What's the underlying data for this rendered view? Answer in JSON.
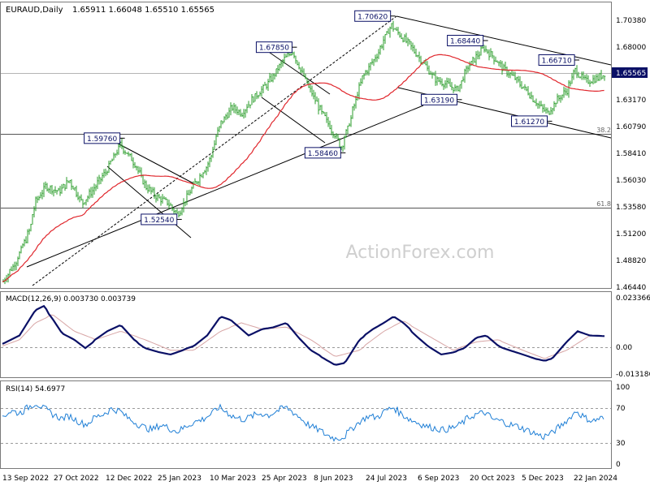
{
  "header": {
    "symbol": "EURAUD,Daily",
    "ohlc": "1.65911 1.66048 1.65510 1.65565",
    "watermark": "ActionForex.com"
  },
  "colors": {
    "candle": "#2b9d2b",
    "ma": "#e0262c",
    "macd": "#0a1066",
    "signal": "#d7a5a5",
    "rsi": "#1f7fd6",
    "guide": "#6b6b6b",
    "price_tag_bg": "#0a1066"
  },
  "chart_data": [
    {
      "type": "candlestick",
      "title": "EURAUD,Daily",
      "last_price": "1.65565",
      "y_ticks": [
        "1.70380",
        "1.68000",
        "1.65565",
        "1.63170",
        "1.60790",
        "1.58410",
        "1.56030",
        "1.53580",
        "1.51200",
        "1.48820",
        "1.46440"
      ],
      "x_ticks": [
        "13 Sep 2022",
        "27 Oct 2022",
        "12 Dec 2022",
        "25 Jan 2023",
        "10 Mar 2023",
        "25 Apr 2023",
        "8 Jun 2023",
        "24 Jul 2023",
        "6 Sep 2023",
        "20 Oct 2023",
        "5 Dec 2023",
        "22 Jan 2024"
      ],
      "ylim": [
        1.4644,
        1.7183
      ],
      "overlay": "moving average (red)",
      "fib_levels": [
        {
          "label": "38.2",
          "value": 1.6012
        },
        {
          "label": "61.8",
          "value": 1.5385
        }
      ],
      "annotations": [
        {
          "label": "1.70620",
          "date": "2023-08-01",
          "value": 1.7062
        },
        {
          "label": "1.67850",
          "date": "2023-05-10",
          "value": 1.6785
        },
        {
          "label": "1.59760",
          "date": "2022-12-16",
          "value": 1.5976
        },
        {
          "label": "1.58460",
          "date": "2023-06-20",
          "value": 1.5846
        },
        {
          "label": "1.52540",
          "date": "2023-02-02",
          "value": 1.5254
        },
        {
          "label": "1.68440",
          "date": "2023-10-18",
          "value": 1.6844
        },
        {
          "label": "1.63190",
          "date": "2023-09-26",
          "value": 1.6319
        },
        {
          "label": "1.66710",
          "date": "2024-01-03",
          "value": 1.6671
        },
        {
          "label": "1.61270",
          "date": "2023-12-11",
          "value": 1.6127
        }
      ],
      "close_path": [
        [
          "2022-09-08",
          1.47
        ],
        [
          "2022-09-20",
          1.49
        ],
        [
          "2022-09-30",
          1.515
        ],
        [
          "2022-10-05",
          1.54
        ],
        [
          "2022-10-14",
          1.555
        ],
        [
          "2022-10-25",
          1.55
        ],
        [
          "2022-11-03",
          1.56
        ],
        [
          "2022-11-14",
          1.54
        ],
        [
          "2022-11-25",
          1.555
        ],
        [
          "2022-12-05",
          1.57
        ],
        [
          "2022-12-16",
          1.592
        ],
        [
          "2022-12-28",
          1.575
        ],
        [
          "2023-01-06",
          1.555
        ],
        [
          "2023-01-16",
          1.545
        ],
        [
          "2023-01-25",
          1.54
        ],
        [
          "2023-02-02",
          1.53
        ],
        [
          "2023-02-10",
          1.545
        ],
        [
          "2023-02-17",
          1.558
        ],
        [
          "2023-02-28",
          1.575
        ],
        [
          "2023-03-10",
          1.61
        ],
        [
          "2023-03-20",
          1.625
        ],
        [
          "2023-03-28",
          1.62
        ],
        [
          "2023-04-06",
          1.632
        ],
        [
          "2023-04-18",
          1.645
        ],
        [
          "2023-04-25",
          1.655
        ],
        [
          "2023-05-03",
          1.668
        ],
        [
          "2023-05-10",
          1.675
        ],
        [
          "2023-05-18",
          1.655
        ],
        [
          "2023-05-25",
          1.64
        ],
        [
          "2023-06-01",
          1.625
        ],
        [
          "2023-06-12",
          1.605
        ],
        [
          "2023-06-20",
          1.59
        ],
        [
          "2023-06-28",
          1.615
        ],
        [
          "2023-07-07",
          1.65
        ],
        [
          "2023-07-13",
          1.66
        ],
        [
          "2023-07-20",
          1.672
        ],
        [
          "2023-08-01",
          1.698
        ],
        [
          "2023-08-08",
          1.69
        ],
        [
          "2023-08-17",
          1.68
        ],
        [
          "2023-08-28",
          1.665
        ],
        [
          "2023-09-07",
          1.65
        ],
        [
          "2023-09-18",
          1.645
        ],
        [
          "2023-09-26",
          1.64
        ],
        [
          "2023-10-04",
          1.66
        ],
        [
          "2023-10-18",
          1.678
        ],
        [
          "2023-10-26",
          1.67
        ],
        [
          "2023-11-03",
          1.66
        ],
        [
          "2023-11-14",
          1.65
        ],
        [
          "2023-11-23",
          1.64
        ],
        [
          "2023-12-05",
          1.625
        ],
        [
          "2023-12-11",
          1.62
        ],
        [
          "2023-12-19",
          1.632
        ],
        [
          "2023-12-27",
          1.64
        ],
        [
          "2024-01-03",
          1.658
        ],
        [
          "2024-01-12",
          1.648
        ],
        [
          "2024-01-22",
          1.651
        ],
        [
          "2024-01-29",
          1.656
        ]
      ]
    },
    {
      "type": "line",
      "title": "MACD(12,26,9) 0.003730 0.003739",
      "y_ticks": [
        "0.023366",
        "0.00",
        "-0.013186"
      ],
      "ylim": [
        -0.0158,
        0.0246
      ],
      "series": [
        {
          "name": "MACD",
          "points": [
            [
              "2022-09-08",
              0.0
            ],
            [
              "2022-09-22",
              0.004
            ],
            [
              "2022-10-05",
              0.016
            ],
            [
              "2022-10-12",
              0.018
            ],
            [
              "2022-10-20",
              0.012
            ],
            [
              "2022-10-28",
              0.005
            ],
            [
              "2022-11-07",
              0.002
            ],
            [
              "2022-11-16",
              -0.002
            ],
            [
              "2022-11-25",
              0.002
            ],
            [
              "2022-12-05",
              0.006
            ],
            [
              "2022-12-16",
              0.009
            ],
            [
              "2022-12-27",
              0.002
            ],
            [
              "2023-01-06",
              -0.002
            ],
            [
              "2023-01-18",
              -0.004
            ],
            [
              "2023-01-27",
              -0.005
            ],
            [
              "2023-02-06",
              -0.003
            ],
            [
              "2023-02-16",
              -0.001
            ],
            [
              "2023-02-27",
              0.004
            ],
            [
              "2023-03-10",
              0.013
            ],
            [
              "2023-03-20",
              0.011
            ],
            [
              "2023-04-03",
              0.004
            ],
            [
              "2023-04-14",
              0.007
            ],
            [
              "2023-04-25",
              0.008
            ],
            [
              "2023-05-05",
              0.01
            ],
            [
              "2023-05-15",
              0.003
            ],
            [
              "2023-05-25",
              -0.003
            ],
            [
              "2023-06-06",
              -0.007
            ],
            [
              "2023-06-15",
              -0.01
            ],
            [
              "2023-06-23",
              -0.009
            ],
            [
              "2023-07-05",
              0.002
            ],
            [
              "2023-07-17",
              0.007
            ],
            [
              "2023-07-26",
              0.01
            ],
            [
              "2023-08-03",
              0.013
            ],
            [
              "2023-08-11",
              0.01
            ],
            [
              "2023-08-22",
              0.004
            ],
            [
              "2023-09-01",
              -0.001
            ],
            [
              "2023-09-12",
              -0.005
            ],
            [
              "2023-09-22",
              -0.004
            ],
            [
              "2023-10-02",
              -0.002
            ],
            [
              "2023-10-12",
              0.003
            ],
            [
              "2023-10-20",
              0.004
            ],
            [
              "2023-10-30",
              -0.001
            ],
            [
              "2023-11-09",
              -0.003
            ],
            [
              "2023-11-20",
              -0.005
            ],
            [
              "2023-11-30",
              -0.007
            ],
            [
              "2023-12-08",
              -0.008
            ],
            [
              "2023-12-15",
              -0.007
            ],
            [
              "2023-12-27",
              0.001
            ],
            [
              "2024-01-05",
              0.006
            ],
            [
              "2024-01-15",
              0.004
            ],
            [
              "2024-01-29",
              0.0037
            ]
          ]
        },
        {
          "name": "Signal",
          "points": [
            [
              "2022-09-08",
              -0.001
            ],
            [
              "2022-09-22",
              0.002
            ],
            [
              "2022-10-05",
              0.01
            ],
            [
              "2022-10-20",
              0.014
            ],
            [
              "2022-11-07",
              0.006
            ],
            [
              "2022-11-25",
              0.002
            ],
            [
              "2022-12-16",
              0.006
            ],
            [
              "2023-01-06",
              0.002
            ],
            [
              "2023-01-27",
              -0.003
            ],
            [
              "2023-02-16",
              -0.003
            ],
            [
              "2023-03-10",
              0.006
            ],
            [
              "2023-03-28",
              0.01
            ],
            [
              "2023-04-14",
              0.007
            ],
            [
              "2023-05-05",
              0.008
            ],
            [
              "2023-05-25",
              0.002
            ],
            [
              "2023-06-15",
              -0.006
            ],
            [
              "2023-07-05",
              -0.003
            ],
            [
              "2023-07-26",
              0.006
            ],
            [
              "2023-08-11",
              0.011
            ],
            [
              "2023-09-01",
              0.004
            ],
            [
              "2023-09-22",
              -0.003
            ],
            [
              "2023-10-12",
              0.001
            ],
            [
              "2023-10-30",
              0.002
            ],
            [
              "2023-11-20",
              -0.003
            ],
            [
              "2023-12-08",
              -0.007
            ],
            [
              "2023-12-27",
              -0.003
            ],
            [
              "2024-01-15",
              0.004
            ],
            [
              "2024-01-29",
              0.0037
            ]
          ]
        }
      ]
    },
    {
      "type": "line",
      "title": "RSI(14) 54.6977",
      "y_ticks": [
        "100",
        "70",
        "30",
        "0"
      ],
      "ylim": [
        0,
        100
      ],
      "levels": [
        70,
        30
      ],
      "series": [
        {
          "name": "RSI(14)",
          "points": [
            [
              "2022-09-08",
              60
            ],
            [
              "2022-09-15",
              66
            ],
            [
              "2022-09-22",
              63
            ],
            [
              "2022-09-29",
              70
            ],
            [
              "2022-10-06",
              75
            ],
            [
              "2022-10-13",
              68
            ],
            [
              "2022-10-20",
              62
            ],
            [
              "2022-10-27",
              57
            ],
            [
              "2022-11-03",
              60
            ],
            [
              "2022-11-10",
              54
            ],
            [
              "2022-11-17",
              50
            ],
            [
              "2022-11-24",
              58
            ],
            [
              "2022-12-01",
              62
            ],
            [
              "2022-12-08",
              68
            ],
            [
              "2022-12-15",
              66
            ],
            [
              "2022-12-22",
              58
            ],
            [
              "2022-12-29",
              52
            ],
            [
              "2023-01-05",
              47
            ],
            [
              "2023-01-12",
              44
            ],
            [
              "2023-01-19",
              50
            ],
            [
              "2023-01-26",
              46
            ],
            [
              "2023-02-02",
              42
            ],
            [
              "2023-02-09",
              48
            ],
            [
              "2023-02-16",
              53
            ],
            [
              "2023-02-23",
              56
            ],
            [
              "2023-03-02",
              62
            ],
            [
              "2023-03-09",
              70
            ],
            [
              "2023-03-16",
              64
            ],
            [
              "2023-03-23",
              58
            ],
            [
              "2023-03-30",
              56
            ],
            [
              "2023-04-06",
              60
            ],
            [
              "2023-04-13",
              63
            ],
            [
              "2023-04-20",
              61
            ],
            [
              "2023-04-27",
              66
            ],
            [
              "2023-05-04",
              70
            ],
            [
              "2023-05-11",
              64
            ],
            [
              "2023-05-18",
              56
            ],
            [
              "2023-05-25",
              48
            ],
            [
              "2023-06-01",
              44
            ],
            [
              "2023-06-08",
              38
            ],
            [
              "2023-06-15",
              34
            ],
            [
              "2023-06-22",
              36
            ],
            [
              "2023-06-29",
              46
            ],
            [
              "2023-07-06",
              54
            ],
            [
              "2023-07-13",
              60
            ],
            [
              "2023-07-20",
              58
            ],
            [
              "2023-07-27",
              66
            ],
            [
              "2023-08-03",
              70
            ],
            [
              "2023-08-10",
              62
            ],
            [
              "2023-08-17",
              56
            ],
            [
              "2023-08-24",
              52
            ],
            [
              "2023-08-31",
              48
            ],
            [
              "2023-09-07",
              46
            ],
            [
              "2023-09-14",
              44
            ],
            [
              "2023-09-21",
              46
            ],
            [
              "2023-09-28",
              50
            ],
            [
              "2023-10-05",
              58
            ],
            [
              "2023-10-12",
              62
            ],
            [
              "2023-10-19",
              64
            ],
            [
              "2023-10-26",
              56
            ],
            [
              "2023-11-02",
              54
            ],
            [
              "2023-11-09",
              50
            ],
            [
              "2023-11-16",
              48
            ],
            [
              "2023-11-23",
              44
            ],
            [
              "2023-11-30",
              40
            ],
            [
              "2023-12-07",
              36
            ],
            [
              "2023-12-14",
              40
            ],
            [
              "2023-12-21",
              48
            ],
            [
              "2023-12-28",
              56
            ],
            [
              "2024-01-04",
              66
            ],
            [
              "2024-01-11",
              58
            ],
            [
              "2024-01-18",
              54
            ],
            [
              "2024-01-25",
              58
            ],
            [
              "2024-01-29",
              54.7
            ]
          ]
        }
      ]
    }
  ]
}
